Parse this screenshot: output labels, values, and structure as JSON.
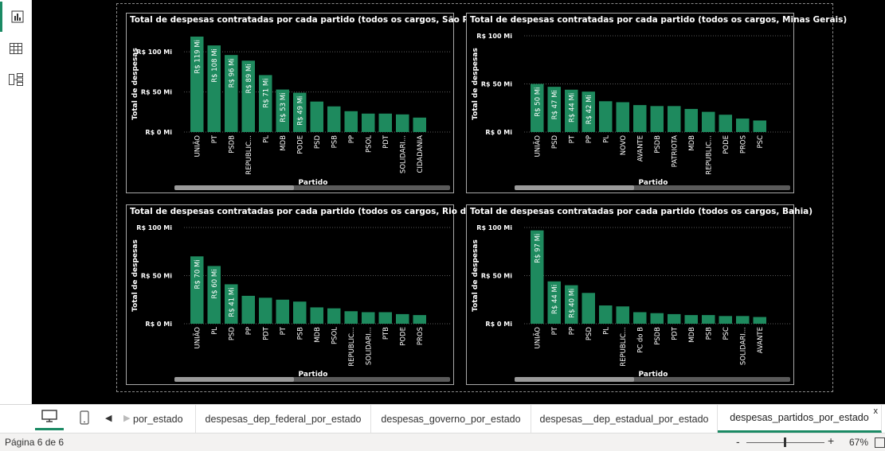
{
  "rail": {
    "items": [
      {
        "name": "report-view",
        "icon": "bar-chart-icon",
        "active": true
      },
      {
        "name": "table-view",
        "icon": "table-icon",
        "active": false
      },
      {
        "name": "model-view",
        "icon": "model-icon",
        "active": false
      }
    ]
  },
  "colors": {
    "bar": "#1e8a5e",
    "grid": "#5a5a5a",
    "accent": "#1b8a64"
  },
  "chart_data": [
    {
      "type": "bar",
      "title": "Total de despesas contratadas por cada partido (todos os cargos, São Paulo)",
      "xlabel": "Partido",
      "ylabel": "Total de despesas",
      "yticks": [
        "R$ 0 Mi",
        "R$ 50 Mi",
        "R$ 100 Mi"
      ],
      "ylim": [
        0,
        120
      ],
      "categories": [
        "UNIÃO",
        "PT",
        "PSDB",
        "REPUBLIC...",
        "PL",
        "MDB",
        "PODE",
        "PSD",
        "PSB",
        "PP",
        "PSOL",
        "PDT",
        "SOLIDARI...",
        "CIDADANIA"
      ],
      "values": [
        119,
        108,
        96,
        89,
        71,
        53,
        49,
        38,
        32,
        26,
        23,
        23,
        22,
        18
      ],
      "labels": [
        "R$ 119 Mi",
        "R$ 108 Mi",
        "R$ 96 Mi",
        "R$ 89 Mi",
        "R$ 71 Mi",
        "R$ 53 Mi",
        "R$ 49 Mi",
        "",
        "",
        "",
        "",
        "",
        "",
        ""
      ]
    },
    {
      "type": "bar",
      "title": "Total de despesas contratadas por cada partido (todos os cargos, Minas Gerais)",
      "xlabel": "Partido",
      "ylabel": "Total de despesas",
      "yticks": [
        "R$ 0 Mi",
        "R$ 50 Mi",
        "R$ 100 Mi"
      ],
      "ylim": [
        0,
        100
      ],
      "categories": [
        "UNIÃO",
        "PSD",
        "PT",
        "PP",
        "PL",
        "NOVO",
        "AVANTE",
        "PSDB",
        "PATRIOTA",
        "MDB",
        "REPUBLIC...",
        "PODE",
        "PROS",
        "PSC"
      ],
      "values": [
        50,
        47,
        44,
        42,
        32,
        31,
        28,
        27,
        27,
        24,
        21,
        18,
        14,
        12
      ],
      "labels": [
        "R$ 50 Mi",
        "R$ 47 Mi",
        "R$ 44 Mi",
        "R$ 42 Mi",
        "",
        "",
        "",
        "",
        "",
        "",
        "",
        "",
        "",
        ""
      ]
    },
    {
      "type": "bar",
      "title": "Total de despesas contratadas por cada partido (todos os cargos, Rio de Janeiro)",
      "xlabel": "Partido",
      "ylabel": "Total de despesas",
      "yticks": [
        "R$ 0 Mi",
        "R$ 50 Mi",
        "R$ 100 Mi"
      ],
      "ylim": [
        0,
        100
      ],
      "categories": [
        "UNIÃO",
        "PL",
        "PSD",
        "PP",
        "PDT",
        "PT",
        "PSB",
        "MDB",
        "PSOL",
        "REPUBLIC...",
        "SOLIDARI...",
        "PTB",
        "PODE",
        "PROS"
      ],
      "values": [
        70,
        60,
        41,
        29,
        27,
        25,
        23,
        17,
        16,
        13,
        12,
        12,
        10,
        9
      ],
      "labels": [
        "R$ 70 Mi",
        "R$ 60 Mi",
        "R$ 41 Mi",
        "",
        "",
        "",
        "",
        "",
        "",
        "",
        "",
        "",
        "",
        ""
      ]
    },
    {
      "type": "bar",
      "title": "Total de despesas contratadas por cada partido (todos os cargos, Bahia)",
      "xlabel": "Partido",
      "ylabel": "Total de despesas",
      "yticks": [
        "R$ 0 Mi",
        "R$ 50 Mi",
        "R$ 100 Mi"
      ],
      "ylim": [
        0,
        100
      ],
      "categories": [
        "UNIÃO",
        "PT",
        "PP",
        "PSD",
        "PL",
        "REPUBLIC...",
        "PC do B",
        "PSDB",
        "PDT",
        "MDB",
        "PSB",
        "PSC",
        "SOLIDARI...",
        "AVANTE"
      ],
      "values": [
        97,
        44,
        40,
        32,
        19,
        18,
        12,
        11,
        10,
        9,
        9,
        8,
        8,
        7
      ],
      "labels": [
        "R$ 97 Mi",
        "R$ 44 Mi",
        "R$ 40 Mi",
        "",
        "",
        "",
        "",
        "",
        "",
        "",
        "",
        "",
        "",
        ""
      ]
    }
  ],
  "tabbar": {
    "prev_arrow": "◀",
    "next_arrow": "▶",
    "tabs": [
      {
        "label": "por_estado",
        "active": false
      },
      {
        "label": "despesas_dep_federal_por_estado",
        "active": false
      },
      {
        "label": "despesas_governo_por_estado",
        "active": false
      },
      {
        "label": "despesas__dep_estadual_por_estado",
        "active": false
      },
      {
        "label": "despesas_partidos_por_estado",
        "active": true
      }
    ],
    "close_glyph": "x"
  },
  "statusbar": {
    "page": "Página 6 de 6",
    "zoom_minus": "-",
    "zoom_plus": "+",
    "zoom": "67%"
  }
}
